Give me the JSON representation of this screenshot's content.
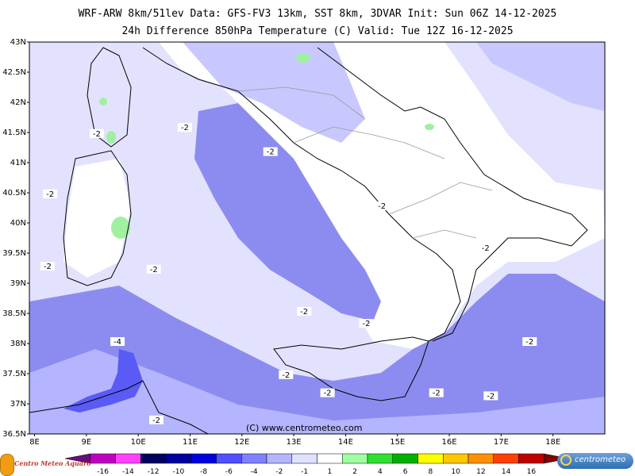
{
  "header": {
    "line1": "WRF-ARW 8km/51lev  Data: GFS-FV3 13km, SST 8km, 3DVAR  Init: Sun 06Z 14-12-2025",
    "line2": "24h Difference 850hPa Temperature (C)  Valid: Tue 12Z 16-12-2025"
  },
  "map": {
    "lat_labels": [
      "43N",
      "42.5N",
      "42N",
      "41.5N",
      "41N",
      "40.5N",
      "40N",
      "39.5N",
      "39N",
      "38.5N",
      "38N",
      "37.5N",
      "37N",
      "36.5N"
    ],
    "lon_labels": [
      "8E",
      "9E",
      "10E",
      "11E",
      "12E",
      "13E",
      "14E",
      "15E",
      "16E",
      "17E",
      "18E"
    ],
    "copyright": "(C) www.centrometeo.com",
    "contour_labels": [
      {
        "text": "-2",
        "lon": 9.2,
        "lat": 41.45
      },
      {
        "text": "-2",
        "lon": 10.9,
        "lat": 41.55
      },
      {
        "text": "-2",
        "lon": 12.55,
        "lat": 41.15
      },
      {
        "text": "-2",
        "lon": 8.3,
        "lat": 40.45
      },
      {
        "text": "-2",
        "lon": 14.7,
        "lat": 40.25
      },
      {
        "text": "-2",
        "lon": 8.25,
        "lat": 39.25
      },
      {
        "text": "-2",
        "lon": 10.3,
        "lat": 39.2
      },
      {
        "text": "-2",
        "lon": 16.7,
        "lat": 39.55
      },
      {
        "text": "-2",
        "lon": 13.2,
        "lat": 38.5
      },
      {
        "text": "-2",
        "lon": 14.4,
        "lat": 38.3
      },
      {
        "text": "-4",
        "lon": 9.6,
        "lat": 38.0
      },
      {
        "text": "-2",
        "lon": 17.55,
        "lat": 38.0
      },
      {
        "text": "-2",
        "lon": 12.85,
        "lat": 37.45
      },
      {
        "text": "-2",
        "lon": 13.65,
        "lat": 37.15
      },
      {
        "text": "-2",
        "lon": 15.75,
        "lat": 37.15
      },
      {
        "text": "-2",
        "lon": 16.8,
        "lat": 37.1
      },
      {
        "text": "-2",
        "lon": 10.35,
        "lat": 36.7
      }
    ]
  },
  "legend": {
    "labels": [
      "-16",
      "-14",
      "-12",
      "-10",
      "-8",
      "-6",
      "-4",
      "-2",
      "-1",
      "1",
      "2",
      "4",
      "6",
      "8",
      "10",
      "12",
      "14",
      "16"
    ],
    "colors": [
      "#6a0d7a",
      "#c000c0",
      "#ff40ff",
      "#000060",
      "#0000a0",
      "#0000e0",
      "#5050ff",
      "#8080ff",
      "#b4b4ff",
      "#e0e0ff",
      "#ffffff",
      "#a0ffa0",
      "#30e030",
      "#00b000",
      "#ffff00",
      "#ffc800",
      "#ff9000",
      "#ff4000",
      "#c00000",
      "#800000"
    ],
    "left_logo": "Centro Meteo Aquaro",
    "right_logo": "centrometeo"
  },
  "chart_data": {
    "type": "heatmap",
    "title": "24h Difference 850hPa Temperature (C)",
    "x_range": [
      7.9,
      19.0
    ],
    "y_range": [
      36.5,
      43.0
    ],
    "units": "C",
    "color_levels": [
      -16,
      -14,
      -12,
      -10,
      -8,
      -6,
      -4,
      -2,
      -1,
      1,
      2,
      4,
      6,
      8,
      10,
      12,
      14,
      16
    ]
  }
}
